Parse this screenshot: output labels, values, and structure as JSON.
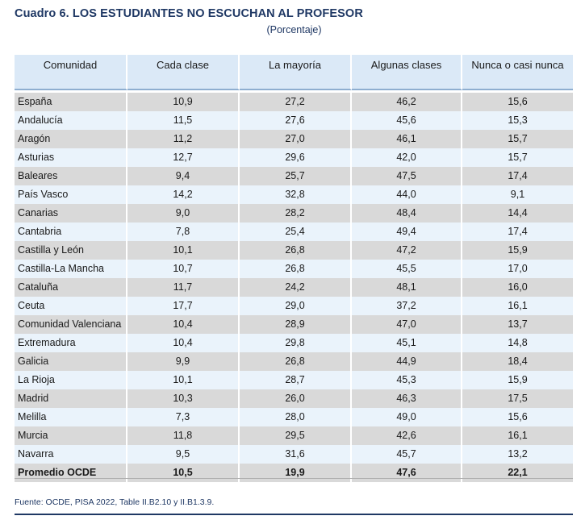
{
  "title": "Cuadro 6. LOS ESTUDIANTES NO ESCUCHAN AL PROFESOR",
  "subtitle": "(Porcentaje)",
  "columns": [
    "Comunidad",
    "Cada clase",
    "La mayoría",
    "Algunas clases",
    "Nunca o casi nunca"
  ],
  "rows": [
    [
      "España",
      "10,9",
      "27,2",
      "46,2",
      "15,6"
    ],
    [
      "Andalucía",
      "11,5",
      "27,6",
      "45,6",
      "15,3"
    ],
    [
      "Aragón",
      "11,2",
      "27,0",
      "46,1",
      "15,7"
    ],
    [
      "Asturias",
      "12,7",
      "29,6",
      "42,0",
      "15,7"
    ],
    [
      "Baleares",
      "9,4",
      "25,7",
      "47,5",
      "17,4"
    ],
    [
      "País Vasco",
      "14,2",
      "32,8",
      "44,0",
      "9,1"
    ],
    [
      "Canarias",
      "9,0",
      "28,2",
      "48,4",
      "14,4"
    ],
    [
      "Cantabria",
      "7,8",
      "25,4",
      "49,4",
      "17,4"
    ],
    [
      "Castilla y León",
      "10,1",
      "26,8",
      "47,2",
      "15,9"
    ],
    [
      "Castilla-La Mancha",
      "10,7",
      "26,8",
      "45,5",
      "17,0"
    ],
    [
      "Cataluña",
      "11,7",
      "24,2",
      "48,1",
      "16,0"
    ],
    [
      "Ceuta",
      "17,7",
      "29,0",
      "37,2",
      "16,1"
    ],
    [
      "Comunidad Valenciana",
      "10,4",
      "28,9",
      "47,0",
      "13,7"
    ],
    [
      "Extremadura",
      "10,4",
      "29,8",
      "45,1",
      "14,8"
    ],
    [
      "Galicia",
      "9,9",
      "26,8",
      "44,9",
      "18,4"
    ],
    [
      "La Rioja",
      "10,1",
      "28,7",
      "45,3",
      "15,9"
    ],
    [
      "Madrid",
      "10,3",
      "26,0",
      "46,3",
      "17,5"
    ],
    [
      "Melilla",
      "7,3",
      "28,0",
      "49,0",
      "15,6"
    ],
    [
      "Murcia",
      "11,8",
      "29,5",
      "42,6",
      "16,1"
    ],
    [
      "Navarra",
      "9,5",
      "31,6",
      "45,7",
      "13,2"
    ]
  ],
  "total_row": [
    "Promedio OCDE",
    "10,5",
    "19,9",
    "47,6",
    "22,1"
  ],
  "source": "Fuente: OCDE, PISA 2022, Table II.B2.10 y II.B1.3.9.",
  "colors": {
    "title": "#1f3864",
    "header_bg": "#dbe9f7",
    "row_gray": "#d9d9d9",
    "row_blue": "#eaf3fb"
  }
}
